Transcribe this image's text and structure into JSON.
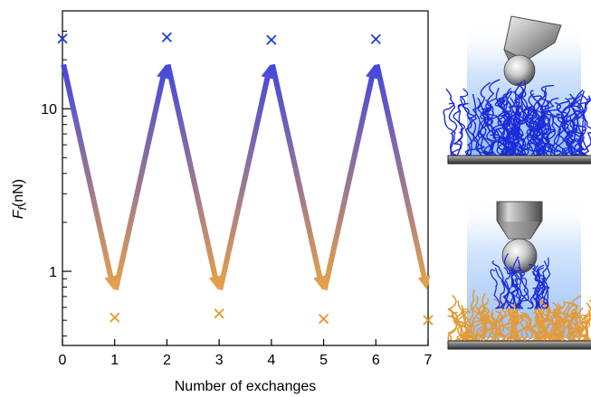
{
  "chart_data": {
    "type": "scatter",
    "xlabel": "Number of exchanges",
    "ylabel": "F_f (nN)",
    "ylabel_main": "F",
    "ylabel_sub": "f",
    "ylabel_unit": "(nN)",
    "xlim": [
      0,
      7
    ],
    "xticks": [
      0,
      1,
      2,
      3,
      4,
      5,
      6,
      7
    ],
    "xtick_labels": [
      "0",
      "1",
      "2",
      "3",
      "4",
      "5",
      "6",
      "7"
    ],
    "ylim": [
      0.35,
      40
    ],
    "yscale": "log",
    "yticks": [
      1,
      10
    ],
    "ytick_labels": [
      "1",
      "10"
    ],
    "minor_yticks": [
      0.4,
      0.5,
      0.6,
      0.7,
      0.8,
      0.9,
      2,
      3,
      4,
      5,
      6,
      7,
      8,
      9,
      20,
      30,
      40
    ],
    "grid": false,
    "series": [
      {
        "x": [
          0,
          2,
          4,
          6
        ],
        "y": [
          27,
          27.5,
          26.5,
          26.8
        ],
        "marker": "x",
        "color": "#1f3fd6"
      },
      {
        "x": [
          1,
          3,
          5,
          7
        ],
        "y": [
          0.52,
          0.55,
          0.51,
          0.5
        ],
        "marker": "x",
        "color": "#e39a27"
      }
    ],
    "arrow_path": {
      "x": [
        0,
        1,
        2,
        3,
        4,
        5,
        6,
        7
      ],
      "y": [
        20,
        0.72,
        20,
        0.72,
        20,
        0.72,
        20,
        0.72
      ],
      "high_color": "#4347df",
      "low_color": "#e7a24a"
    }
  },
  "illustrations": [
    {
      "name": "tip-above-brush-polymer",
      "glow_color": "#6fa8f5",
      "polymer_colors": [
        "#1b2bd8"
      ]
    },
    {
      "name": "tip-above-mixed-brush",
      "glow_color": "#6fa8f5",
      "polymer_colors": [
        "#1b2bd8",
        "#e49a37"
      ]
    }
  ]
}
